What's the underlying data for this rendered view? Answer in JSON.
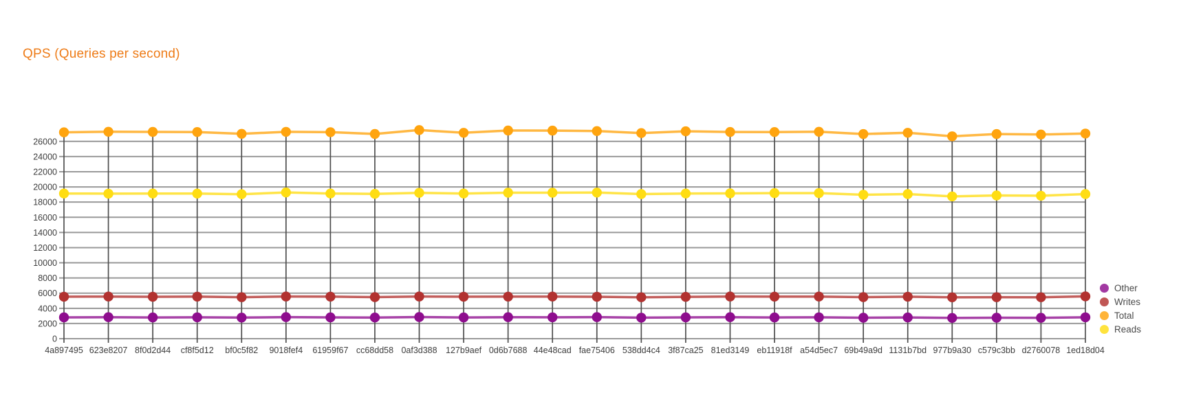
{
  "title": {
    "text": "QPS (Queries per second)",
    "color": "#ee7c18"
  },
  "chart_data": {
    "type": "line",
    "title": "QPS (Queries per second)",
    "xlabel": "",
    "ylabel": "",
    "ylim": [
      0,
      27250
    ],
    "y_ticks": [
      0,
      2000,
      4000,
      6000,
      8000,
      10000,
      12000,
      14000,
      16000,
      18000,
      20000,
      22000,
      24000,
      26000
    ],
    "grid": true,
    "legend_position": "right",
    "categories": [
      "4a897495",
      "623e8207",
      "8f0d2d44",
      "cf8f5d12",
      "bf0c5f82",
      "9018fef4",
      "61959f67",
      "cc68dd58",
      "0af3d388",
      "127b9aef",
      "0d6b7688",
      "44e48cad",
      "fae75406",
      "538dd4c4",
      "3f87ca25",
      "81ed3149",
      "eb11918f",
      "a54d5ec7",
      "69b49a9d",
      "1131b7bd",
      "977b9a30",
      "c579c3bb",
      "d2760078",
      "1ed18d04"
    ],
    "series": [
      {
        "name": "Other",
        "color": "#8e0d8e",
        "values": [
          2810,
          2830,
          2800,
          2820,
          2780,
          2840,
          2810,
          2790,
          2850,
          2800,
          2830,
          2820,
          2840,
          2770,
          2810,
          2830,
          2800,
          2820,
          2760,
          2800,
          2730,
          2760,
          2750,
          2820
        ]
      },
      {
        "name": "Writes",
        "color": "#b23230",
        "values": [
          5530,
          5550,
          5520,
          5540,
          5470,
          5560,
          5540,
          5480,
          5560,
          5530,
          5540,
          5550,
          5520,
          5460,
          5510,
          5560,
          5540,
          5550,
          5480,
          5530,
          5450,
          5470,
          5460,
          5580
        ]
      },
      {
        "name": "Total",
        "color": "#ffa40e",
        "values": [
          27200,
          27270,
          27250,
          27230,
          27000,
          27260,
          27210,
          26980,
          27490,
          27130,
          27430,
          27420,
          27360,
          27100,
          27330,
          27240,
          27230,
          27270,
          26970,
          27130,
          26670,
          26970,
          26910,
          27030
        ]
      },
      {
        "name": "Reads",
        "color": "#ffdd13",
        "values": [
          19130,
          19110,
          19130,
          19120,
          19040,
          19270,
          19130,
          19080,
          19220,
          19130,
          19240,
          19240,
          19260,
          19060,
          19130,
          19150,
          19180,
          19180,
          18970,
          19060,
          18750,
          18880,
          18840,
          19060
        ]
      }
    ]
  }
}
